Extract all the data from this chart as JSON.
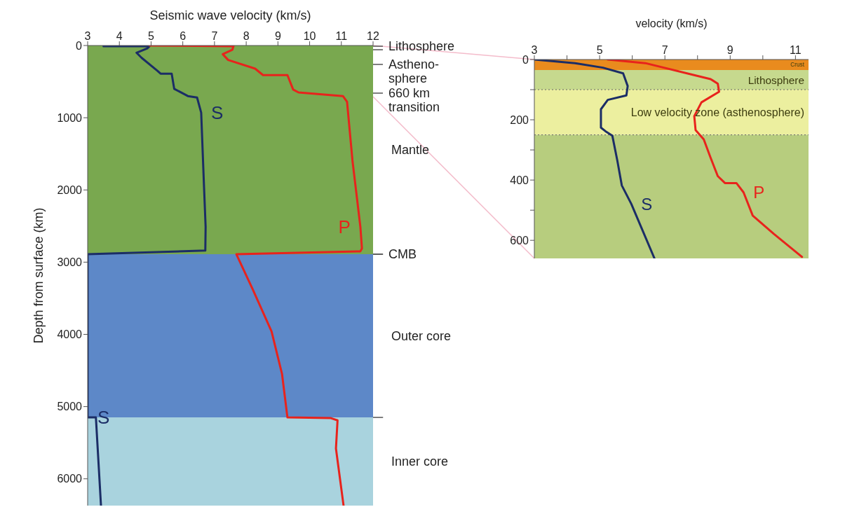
{
  "chart_data": [
    {
      "type": "line",
      "xlabel": "Seismic wave velocity (km/s)",
      "ylabel": "Depth from surface (km)",
      "xlim": [
        3,
        12
      ],
      "xticks": [
        3,
        4,
        5,
        6,
        7,
        8,
        9,
        10,
        11,
        12
      ],
      "ylim": [
        6371,
        0
      ],
      "yticks": [
        0,
        1000,
        2000,
        3000,
        4000,
        5000,
        6000
      ],
      "annotations": [
        "Lithosphere",
        "Astheno-\nsphere",
        "660 km\ntransition",
        "CMB"
      ],
      "marker": "none",
      "series": [
        {
          "name": "S",
          "color": "#1b2d66",
          "x": [
            3.5,
            4.95,
            4.88,
            4.54,
            4.7,
            5.2,
            5.3,
            5.65,
            5.73,
            6.16,
            6.45,
            6.58,
            6.67,
            6.72,
            6.71,
            3.0,
            null,
            3.0,
            3.26,
            3.42
          ],
          "values": [
            10,
            10,
            40,
            100,
            170,
            350,
            390,
            390,
            600,
            700,
            720,
            930,
            1960,
            2510,
            2840,
            2890,
            null,
            5150,
            5150,
            6370
          ]
        },
        {
          "name": "P",
          "color": "#e8231c",
          "x": [
            4.95,
            7.6,
            7.56,
            7.26,
            7.43,
            8.28,
            8.53,
            9.3,
            9.48,
            9.65,
            11.05,
            11.18,
            11.35,
            11.6,
            11.65,
            11.6,
            7.69,
            8.2,
            8.8,
            9.13,
            9.3,
            10.67,
            10.88,
            10.83,
            11.07
          ],
          "values": [
            0,
            10,
            60,
            120,
            200,
            320,
            410,
            410,
            610,
            650,
            700,
            780,
            1590,
            2510,
            2810,
            2850,
            2890,
            3370,
            3960,
            4550,
            5150,
            5160,
            5190,
            5580,
            6370
          ]
        }
      ],
      "bands": [
        {
          "axis": "y",
          "from": 0,
          "to": 2890,
          "label": "Mantle",
          "color": "#79a84f"
        },
        {
          "axis": "y",
          "from": 2890,
          "to": 5150,
          "label": "Outer core",
          "color": "#5d88c8"
        },
        {
          "axis": "y",
          "from": 5150,
          "to": 6371,
          "label": "Inner core",
          "color": "#a9d3de"
        }
      ]
    },
    {
      "type": "line",
      "xlabel": "velocity (km/s)",
      "xlim": [
        3,
        11.4
      ],
      "xticks": [
        3,
        {
          "value": 4,
          "label": null
        },
        5,
        {
          "value": 6,
          "label": null
        },
        7,
        {
          "value": 8,
          "label": null
        },
        9,
        {
          "value": 10,
          "label": null
        },
        11
      ],
      "ylim": [
        660,
        0
      ],
      "yticks": [
        0,
        {
          "value": 100,
          "label": null
        },
        200,
        {
          "value": 300,
          "label": null
        },
        400,
        {
          "value": 500,
          "label": null
        },
        600
      ],
      "marker": "none",
      "series": [
        {
          "name": "S",
          "color": "#1b2d66",
          "x": [
            3.0,
            4.25,
            5.1,
            5.72,
            5.86,
            5.82,
            5.25,
            5.04,
            5.04,
            5.18,
            5.39,
            5.54,
            5.68,
            5.97,
            6.68
          ],
          "values": [
            0,
            12,
            27,
            46,
            88,
            119,
            134,
            165,
            226,
            238,
            253,
            334,
            418,
            479,
            660
          ]
        },
        {
          "name": "P",
          "color": "#e8231c",
          "x": [
            5.25,
            6.4,
            7.83,
            8.4,
            8.62,
            8.66,
            8.12,
            7.9,
            7.94,
            8.19,
            8.4,
            8.62,
            8.84,
            9.19,
            9.41,
            9.69,
            10.34,
            11.2
          ],
          "values": [
            0,
            12,
            50,
            65,
            80,
            107,
            142,
            188,
            234,
            265,
            326,
            387,
            410,
            410,
            441,
            518,
            579,
            655
          ]
        }
      ],
      "bands": [
        {
          "axis": "y",
          "from": 0,
          "to": 35,
          "label": "Crust",
          "color": "#e98b1e"
        },
        {
          "axis": "y",
          "from": 35,
          "to": 100,
          "label": "Lithosphere",
          "color": "#c6d98e"
        },
        {
          "axis": "y",
          "from": 100,
          "to": 250,
          "label": "Low velocity zone  (asthenosphere)",
          "color": "#ecef9f"
        },
        {
          "axis": "y",
          "from": 250,
          "to": 660,
          "color": "#b7cd7e"
        }
      ],
      "ref_lines": [
        {
          "axis": "y",
          "value": 100,
          "color": "#666666",
          "line_style": "dotted"
        },
        {
          "axis": "y",
          "value": 250,
          "color": "#666666",
          "line_style": "dotted"
        }
      ]
    }
  ]
}
